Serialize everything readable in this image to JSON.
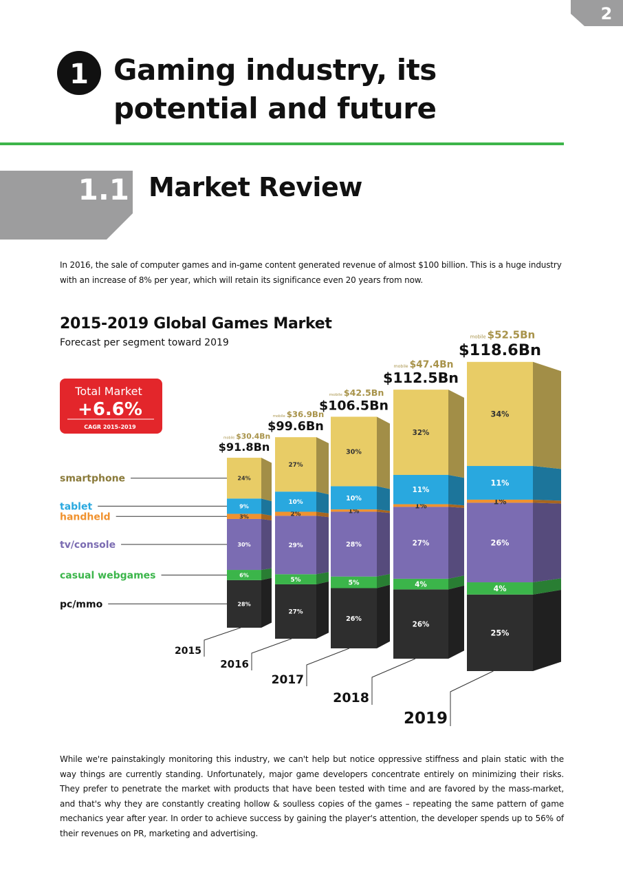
{
  "page_number": "2",
  "chapter": {
    "number": "1",
    "title": "Gaming industry, its potential and future"
  },
  "section": {
    "number": "1.1",
    "title": "Market Review"
  },
  "intro": "In 2016, the sale of computer games and in-game content generated revenue of almost $100 billion. This is a huge industry with an increase of 8% per year, which will retain its significance even 20 years from now.",
  "chart_data": {
    "type": "bar",
    "stacked": true,
    "title": "2015-2019 Global Games Market",
    "subtitle": "Forecast per segment toward 2019",
    "callout": {
      "title": "Total Market",
      "value": "+6.6%",
      "caption": "CAGR 2015-2019"
    },
    "categories": [
      "2015",
      "2016",
      "2017",
      "2018",
      "2019"
    ],
    "series": [
      {
        "name": "pc/mmo",
        "color": "#2e2e2e",
        "label_color": "#111111",
        "values": [
          28,
          27,
          26,
          26,
          25
        ],
        "value_labels": [
          "28%",
          "27%",
          "26%",
          "26%",
          "25%"
        ]
      },
      {
        "name": "casual webgames",
        "color": "#3bb54a",
        "label_color": "#3bb54a",
        "values": [
          6,
          5,
          5,
          4,
          4
        ],
        "value_labels": [
          "6%",
          "5%",
          "5%",
          "4%",
          "4%"
        ]
      },
      {
        "name": "tv/console",
        "color": "#7b6cb2",
        "label_color": "#7b6cb2",
        "values": [
          30,
          29,
          28,
          27,
          26
        ],
        "value_labels": [
          "30%",
          "29%",
          "28%",
          "27%",
          "26%"
        ]
      },
      {
        "name": "handheld",
        "color": "#f0922f",
        "label_color": "#f0922f",
        "values": [
          3,
          2,
          1,
          1,
          1
        ],
        "value_labels": [
          "3%",
          "2%",
          "1%",
          "1%",
          "1%"
        ]
      },
      {
        "name": "tablet",
        "color": "#29a8df",
        "label_color": "#29a8df",
        "values": [
          9,
          10,
          10,
          11,
          11
        ],
        "value_labels": [
          "9%",
          "10%",
          "10%",
          "11%",
          "11%"
        ]
      },
      {
        "name": "smartphone",
        "color": "#e8cc66",
        "label_color": "#8a7a3a",
        "values": [
          24,
          27,
          30,
          32,
          34
        ],
        "value_labels": [
          "24%",
          "27%",
          "30%",
          "32%",
          "34%"
        ]
      }
    ],
    "totals": {
      "values": [
        91.8,
        99.6,
        106.5,
        112.5,
        118.6
      ],
      "value_labels": [
        "$91.8Bn",
        "$99.6Bn",
        "$106.5Bn",
        "$112.5Bn",
        "$118.6Bn"
      ]
    },
    "mobile": {
      "name": "mobile",
      "labels": [
        "$30.4Bn",
        "$36.9Bn",
        "$42.5Bn",
        "$47.4Bn",
        "$52.5Bn"
      ]
    }
  },
  "body": "While we're painstakingly monitoring this industry, we can't help but notice oppressive stiffness and plain static with the way things are currently standing. Unfortunately, major game developers concentrate entirely on minimizing their risks. They prefer to penetrate the market with products that have been tested with time and are favored by the mass-market, and that's why they are constantly creating hollow & soulless copies of the games – repeating the same pattern of game mechanics year after year. In order to achieve success by gaining the player's attention, the developer spends up to 56% of their revenues on PR, marketing and advertising."
}
